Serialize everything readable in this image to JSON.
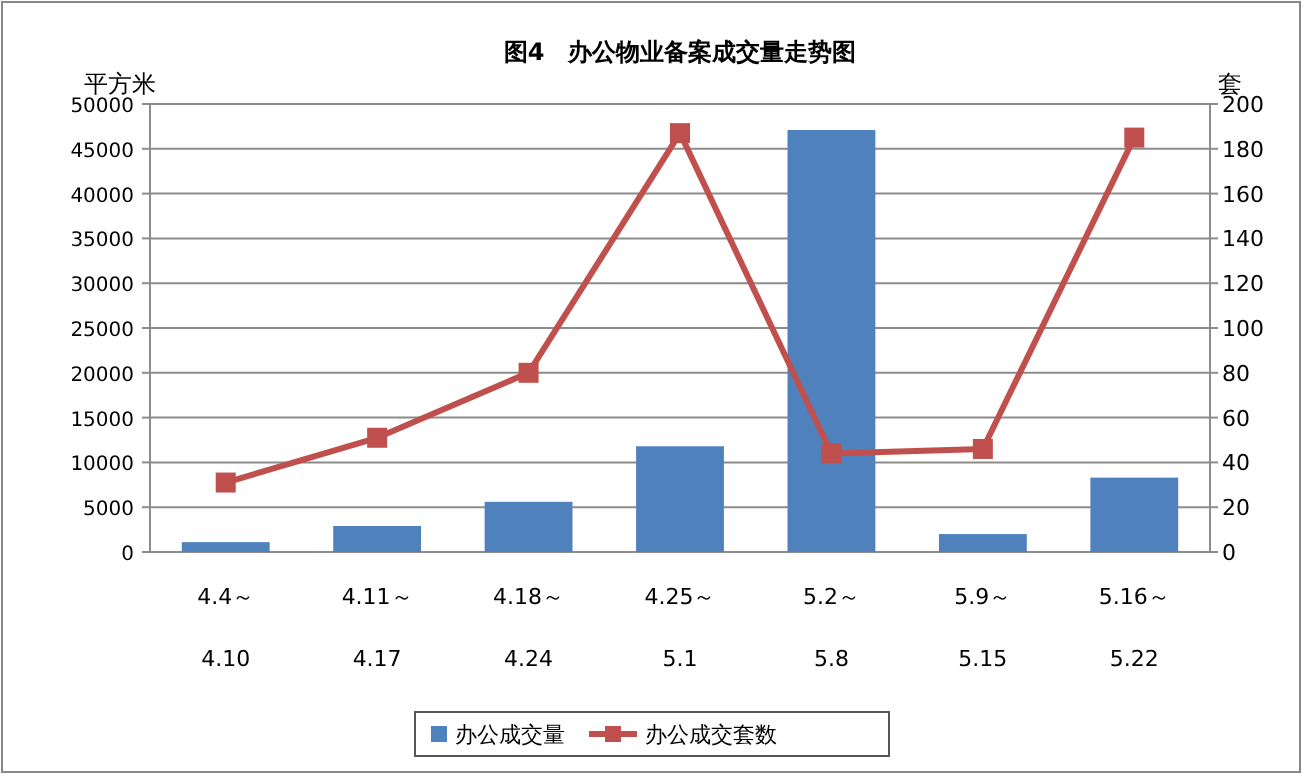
{
  "chart_data": {
    "type": "bar",
    "title": "图4　办公物业备案成交量走势图",
    "ylabel": "平方米",
    "y2label": "套",
    "categories": [
      "4.4～\n4.10",
      "4.11～\n4.17",
      "4.18～\n4.24",
      "4.25～\n5.1",
      "5.2～\n5.8",
      "5.9～\n5.15",
      "5.16～\n5.22"
    ],
    "series": [
      {
        "name": "办公成交量",
        "color": "#4f81bd",
        "values": [
          1100,
          2900,
          5600,
          11800,
          47100,
          2000,
          8300
        ]
      },
      {
        "name": "办公成交套数",
        "type": "line",
        "axis": "y2",
        "color": "#c0504d",
        "marker": "square",
        "values": [
          31,
          51,
          80,
          187,
          44,
          46,
          185
        ]
      }
    ],
    "ylim": [
      0,
      50000
    ],
    "yticks": [
      0,
      5000,
      10000,
      15000,
      20000,
      25000,
      30000,
      35000,
      40000,
      45000,
      50000
    ],
    "y2lim": [
      0,
      200
    ],
    "y2ticks": [
      0,
      20,
      40,
      60,
      80,
      100,
      120,
      140,
      160,
      180,
      200
    ],
    "grid": "y",
    "legend": "bottom"
  }
}
